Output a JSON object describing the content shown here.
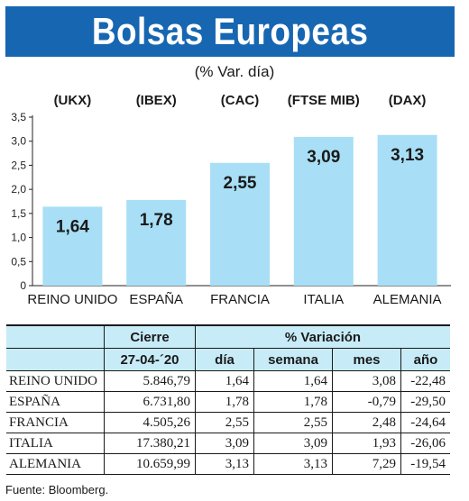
{
  "header": {
    "title": "Bolsas Europeas",
    "subtitle": "(% Var. día)"
  },
  "chart_data": {
    "type": "bar",
    "categories": [
      "REINO UNIDO",
      "ESPAÑA",
      "FRANCIA",
      "ITALIA",
      "ALEMANIA"
    ],
    "indices": [
      "(UKX)",
      "(IBEX)",
      "(CAC)",
      "(FTSE MIB)",
      "(DAX)"
    ],
    "values": [
      1.64,
      1.78,
      2.55,
      3.09,
      3.13
    ],
    "value_labels": [
      "1,64",
      "1,78",
      "2,55",
      "3,09",
      "3,13"
    ],
    "yticks": [
      0,
      0.5,
      1.0,
      1.5,
      2.0,
      2.5,
      3.0,
      3.5
    ],
    "ytick_labels": [
      "0",
      "0,5",
      "1,0",
      "1,5",
      "2,0",
      "2,5",
      "3,0",
      "3,5"
    ],
    "ylim": [
      0,
      3.5
    ],
    "bar_color": "#a8dff6"
  },
  "table": {
    "col_cierre": "Cierre",
    "col_variacion": "% Variación",
    "date": "27-04-´20",
    "sub_headers": [
      "día",
      "semana",
      "mes",
      "año"
    ],
    "rows": [
      {
        "country": "REINO UNIDO",
        "cierre": "5.846,79",
        "dia": "1,64",
        "semana": "1,64",
        "mes": "3,08",
        "anio": "-22,48"
      },
      {
        "country": "ESPAÑA",
        "cierre": "6.731,80",
        "dia": "1,78",
        "semana": "1,78",
        "mes": "-0,79",
        "anio": "-29,50"
      },
      {
        "country": "FRANCIA",
        "cierre": "4.505,26",
        "dia": "2,55",
        "semana": "2,55",
        "mes": "2,48",
        "anio": "-24,64"
      },
      {
        "country": "ITALIA",
        "cierre": "17.380,21",
        "dia": "3,09",
        "semana": "3,09",
        "mes": "1,93",
        "anio": "-26,06"
      },
      {
        "country": "ALEMANIA",
        "cierre": "10.659,99",
        "dia": "3,13",
        "semana": "3,13",
        "mes": "7,29",
        "anio": "-19,54"
      }
    ]
  },
  "source": "Fuente: Bloomberg."
}
